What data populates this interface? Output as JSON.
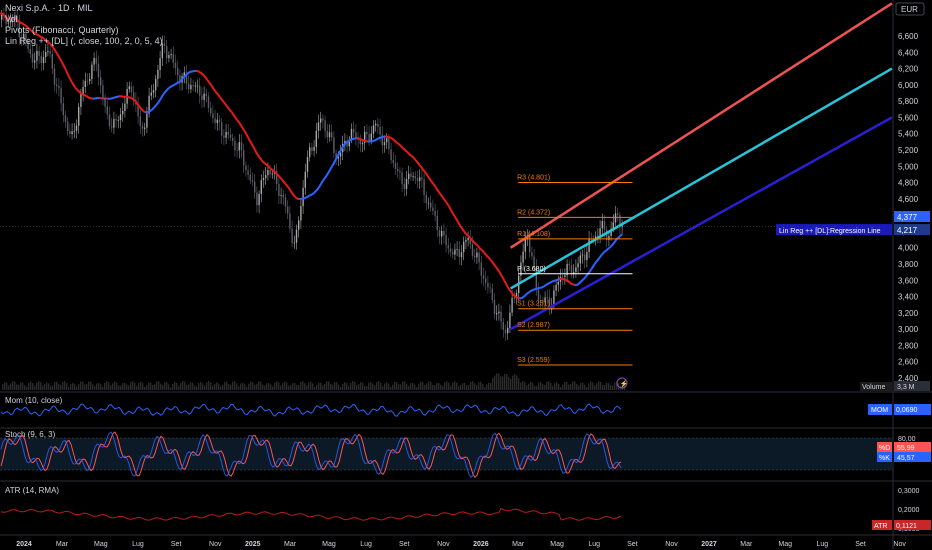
{
  "header": {
    "symbol": "Nexi S.p.A. · 1D · MIL",
    "ind_vol": "Vol",
    "ind_pivots": "Pivots (Fibonacci, Quarterly)",
    "ind_linreg": "Lin Reg ++ [DL] (, close, 100, 2, 0, 5, 4)"
  },
  "currency": "EUR",
  "colors": {
    "background": "#000000",
    "axis_text": "#d1d4dc",
    "ma_up": "#2962ff",
    "ma_down": "#e21a1a",
    "linreg_upper": "#ef5350",
    "linreg_mid": "#26c6da",
    "linreg_lower": "#2a1fd6",
    "pivot_line": "#f57c00",
    "pivot_p": "#ffffff",
    "mom_line": "#2962ff",
    "stoch_k": "#2962ff",
    "stoch_d": "#ff5252",
    "atr_line": "#b71c1c",
    "price_tag": "#2962ff"
  },
  "chart_data": [
    {
      "type": "candlestick",
      "price_axis": {
        "ticks": [
          "6,600",
          "6,400",
          "6,200",
          "6,000",
          "5,800",
          "5,600",
          "5,400",
          "5,200",
          "5,000",
          "4,800",
          "4,600",
          "4,400",
          "4,200",
          "4,000",
          "3,800",
          "3,600",
          "3,400",
          "3,200",
          "3,000",
          "2,800",
          "2,600",
          "2,400"
        ],
        "ylim": [
          2.4,
          6.6
        ]
      },
      "time_axis": {
        "ticks": [
          "2024",
          "Mar",
          "Mag",
          "Lug",
          "Set",
          "Nov",
          "2025",
          "Mar",
          "Mag",
          "Lug",
          "Set",
          "Nov",
          "2026",
          "Mar",
          "Mag",
          "Lug",
          "Set",
          "Nov",
          "2027",
          "Mar",
          "Mag",
          "Lug",
          "Set",
          "Nov"
        ]
      },
      "close_path": [
        {
          "date": "2024-01-15",
          "close": 6.8
        },
        {
          "date": "2024-02-15",
          "close": 6.3
        },
        {
          "date": "2024-03-10",
          "close": 6.4
        },
        {
          "date": "2024-03-25",
          "close": 5.9
        },
        {
          "date": "2024-04-15",
          "close": 5.3
        },
        {
          "date": "2024-05-05",
          "close": 6.0
        },
        {
          "date": "2024-05-25",
          "close": 6.3
        },
        {
          "date": "2024-06-10",
          "close": 5.6
        },
        {
          "date": "2024-06-25",
          "close": 5.5
        },
        {
          "date": "2024-07-20",
          "close": 6.0
        },
        {
          "date": "2024-08-05",
          "close": 5.4
        },
        {
          "date": "2024-08-25",
          "close": 6.0
        },
        {
          "date": "2024-09-10",
          "close": 6.5
        },
        {
          "date": "2024-10-05",
          "close": 6.1
        },
        {
          "date": "2024-11-10",
          "close": 5.9
        },
        {
          "date": "2024-12-05",
          "close": 5.5
        },
        {
          "date": "2025-01-10",
          "close": 5.2
        },
        {
          "date": "2025-02-05",
          "close": 4.6
        },
        {
          "date": "2025-02-25",
          "close": 5.0
        },
        {
          "date": "2025-03-20",
          "close": 4.6
        },
        {
          "date": "2025-04-08",
          "close": 4.0
        },
        {
          "date": "2025-04-25",
          "close": 5.0
        },
        {
          "date": "2025-05-20",
          "close": 5.6
        },
        {
          "date": "2025-06-15",
          "close": 5.1
        },
        {
          "date": "2025-07-05",
          "close": 5.4
        },
        {
          "date": "2025-07-25",
          "close": 5.3
        },
        {
          "date": "2025-08-15",
          "close": 5.5
        },
        {
          "date": "2025-09-05",
          "close": 5.2
        },
        {
          "date": "2025-09-25",
          "close": 4.8
        },
        {
          "date": "2025-10-20",
          "close": 4.9
        },
        {
          "date": "2025-11-10",
          "close": 4.5
        },
        {
          "date": "2025-12-01",
          "close": 4.1
        },
        {
          "date": "2025-12-20",
          "close": 3.9
        },
        {
          "date": "2026-01-10",
          "close": 4.1
        },
        {
          "date": "2026-02-01",
          "close": 3.7
        },
        {
          "date": "2026-02-25",
          "close": 3.2
        },
        {
          "date": "2026-03-10",
          "close": 2.95
        },
        {
          "date": "2026-03-25",
          "close": 3.4
        },
        {
          "date": "2026-04-15",
          "close": 4.2
        },
        {
          "date": "2026-05-01",
          "close": 3.4
        },
        {
          "date": "2026-05-20",
          "close": 3.3
        },
        {
          "date": "2026-06-10",
          "close": 3.7
        },
        {
          "date": "2026-07-01",
          "close": 3.75
        },
        {
          "date": "2026-07-20",
          "close": 4.0
        },
        {
          "date": "2026-08-10",
          "close": 4.25
        },
        {
          "date": "2026-08-25",
          "close": 4.15
        },
        {
          "date": "2026-09-05",
          "close": 4.45
        },
        {
          "date": "2026-09-15",
          "close": 4.22
        }
      ],
      "pivots": [
        {
          "label": "R3 (4.801)",
          "value": 4.801
        },
        {
          "label": "R2 (4.372)",
          "value": 4.372
        },
        {
          "label": "R1 (4.108)",
          "value": 4.108
        },
        {
          "label": "P (3.680)",
          "value": 3.68
        },
        {
          "label": "S1 (3.251)",
          "value": 3.251
        },
        {
          "label": "S2 (2.987)",
          "value": 2.987
        },
        {
          "label": "S3 (2.559)",
          "value": 2.559
        }
      ],
      "linreg_channel": {
        "start_date": "2026-03-20",
        "end_date": "2027-11-20",
        "upper": [
          4.0,
          7.0
        ],
        "mid": [
          3.5,
          6.2
        ],
        "lower": [
          3.0,
          5.6
        ]
      },
      "last_price": "4,217",
      "last_price_upper": "4,377",
      "regression_label": "Lin Reg ++ [DL]:Regression Line",
      "volume_label": "Volume",
      "volume_value": "3,3 M"
    },
    {
      "type": "line",
      "title": "Mom (10, close)",
      "series": [
        {
          "name": "MOM",
          "last": "0,0690"
        }
      ]
    },
    {
      "type": "line",
      "title": "Stoch (9, 6, 3)",
      "y_ticks": [
        "80,00"
      ],
      "series": [
        {
          "name": "%D",
          "last": "55,99"
        },
        {
          "name": "%K",
          "last": "45,57"
        }
      ]
    },
    {
      "type": "line",
      "title": "ATR (14, RMA)",
      "y_ticks": [
        "0,3000",
        "0,2000",
        "0,1000"
      ],
      "series": [
        {
          "name": "ATR",
          "last": "0,1121"
        }
      ]
    }
  ]
}
